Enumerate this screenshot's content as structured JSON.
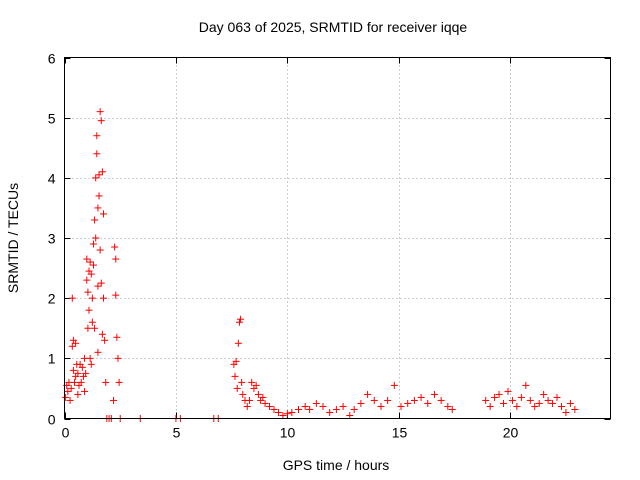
{
  "chart_data": {
    "type": "scatter",
    "title": "Day 063 of 2025, SRMTID for receiver iqqe",
    "xlabel": "GPS time / hours",
    "ylabel": "SRMTID / TECUs",
    "xlim": [
      0,
      24.5
    ],
    "ylim": [
      0,
      6
    ],
    "xticks": [
      0,
      5,
      10,
      15,
      20
    ],
    "yticks": [
      0,
      1,
      2,
      3,
      4,
      5,
      6
    ],
    "xtick_labels": [
      "0",
      "5",
      "10",
      "15",
      "20"
    ],
    "ytick_labels": [
      "0",
      "1",
      "2",
      "3",
      "4",
      "5",
      "6"
    ],
    "grid": true,
    "marker": "+",
    "color": "#ff0000",
    "series": [
      {
        "name": "SRMTID",
        "points": [
          [
            0.05,
            0.35
          ],
          [
            0.1,
            0.55
          ],
          [
            0.15,
            0.45
          ],
          [
            0.2,
            0.6
          ],
          [
            0.25,
            0.3
          ],
          [
            0.3,
            0.5
          ],
          [
            0.35,
            2.0
          ],
          [
            0.35,
            1.2
          ],
          [
            0.4,
            1.3
          ],
          [
            0.4,
            0.8
          ],
          [
            0.45,
            0.6
          ],
          [
            0.5,
            1.25
          ],
          [
            0.5,
            0.7
          ],
          [
            0.55,
            0.9
          ],
          [
            0.6,
            0.4
          ],
          [
            0.6,
            0.75
          ],
          [
            0.65,
            0.55
          ],
          [
            0.7,
            0.9
          ],
          [
            0.75,
            0.6
          ],
          [
            0.8,
            0.85
          ],
          [
            0.85,
            0.7
          ],
          [
            0.9,
            0.45
          ],
          [
            0.9,
            1.0
          ],
          [
            0.95,
            0.75
          ],
          [
            1.0,
            2.65
          ],
          [
            1.0,
            2.3
          ],
          [
            1.05,
            2.1
          ],
          [
            1.05,
            1.5
          ],
          [
            1.1,
            2.45
          ],
          [
            1.1,
            1.8
          ],
          [
            1.15,
            1.0
          ],
          [
            1.15,
            2.6
          ],
          [
            1.2,
            2.4
          ],
          [
            1.2,
            0.9
          ],
          [
            1.25,
            1.6
          ],
          [
            1.25,
            2.0
          ],
          [
            1.3,
            2.55
          ],
          [
            1.3,
            2.9
          ],
          [
            1.35,
            3.3
          ],
          [
            1.35,
            1.5
          ],
          [
            1.4,
            4.0
          ],
          [
            1.4,
            3.0
          ],
          [
            1.45,
            4.7
          ],
          [
            1.45,
            4.4
          ],
          [
            1.5,
            3.5
          ],
          [
            1.5,
            2.2
          ],
          [
            1.5,
            1.1
          ],
          [
            1.55,
            4.05
          ],
          [
            1.55,
            3.7
          ],
          [
            1.6,
            5.1
          ],
          [
            1.6,
            2.8
          ],
          [
            1.65,
            4.95
          ],
          [
            1.65,
            2.25
          ],
          [
            1.7,
            4.1
          ],
          [
            1.7,
            1.4
          ],
          [
            1.75,
            3.4
          ],
          [
            1.75,
            2.0
          ],
          [
            1.8,
            1.3
          ],
          [
            1.85,
            0.6
          ],
          [
            1.9,
            0.0
          ],
          [
            2.0,
            0.0
          ],
          [
            2.1,
            0.0
          ],
          [
            2.2,
            0.3
          ],
          [
            2.25,
            2.85
          ],
          [
            2.3,
            2.65
          ],
          [
            2.3,
            2.05
          ],
          [
            2.35,
            1.35
          ],
          [
            2.4,
            1.0
          ],
          [
            2.45,
            0.6
          ],
          [
            2.5,
            0.0
          ],
          [
            3.4,
            0.0
          ],
          [
            5.0,
            0.0
          ],
          [
            5.2,
            0.0
          ],
          [
            6.7,
            0.0
          ],
          [
            6.9,
            0.0
          ],
          [
            7.6,
            0.9
          ],
          [
            7.65,
            0.7
          ],
          [
            7.7,
            0.95
          ],
          [
            7.75,
            0.5
          ],
          [
            7.8,
            1.25
          ],
          [
            7.85,
            1.6
          ],
          [
            7.9,
            1.65
          ],
          [
            7.95,
            0.6
          ],
          [
            8.0,
            0.4
          ],
          [
            8.1,
            0.3
          ],
          [
            8.2,
            0.2
          ],
          [
            8.3,
            0.3
          ],
          [
            8.4,
            0.6
          ],
          [
            8.5,
            0.5
          ],
          [
            8.6,
            0.55
          ],
          [
            8.7,
            0.4
          ],
          [
            8.8,
            0.3
          ],
          [
            8.9,
            0.35
          ],
          [
            9.0,
            0.25
          ],
          [
            9.2,
            0.2
          ],
          [
            9.4,
            0.15
          ],
          [
            9.6,
            0.1
          ],
          [
            9.8,
            0.05
          ],
          [
            10.0,
            0.08
          ],
          [
            10.2,
            0.1
          ],
          [
            10.5,
            0.15
          ],
          [
            10.8,
            0.2
          ],
          [
            11.0,
            0.15
          ],
          [
            11.3,
            0.25
          ],
          [
            11.6,
            0.2
          ],
          [
            11.9,
            0.1
          ],
          [
            12.2,
            0.15
          ],
          [
            12.5,
            0.2
          ],
          [
            12.8,
            0.05
          ],
          [
            13.0,
            0.15
          ],
          [
            13.3,
            0.25
          ],
          [
            13.6,
            0.4
          ],
          [
            13.9,
            0.3
          ],
          [
            14.2,
            0.2
          ],
          [
            14.5,
            0.3
          ],
          [
            14.8,
            0.55
          ],
          [
            15.1,
            0.2
          ],
          [
            15.4,
            0.25
          ],
          [
            15.7,
            0.3
          ],
          [
            16.0,
            0.35
          ],
          [
            16.3,
            0.25
          ],
          [
            16.6,
            0.4
          ],
          [
            16.9,
            0.3
          ],
          [
            17.2,
            0.2
          ],
          [
            17.4,
            0.15
          ],
          [
            18.9,
            0.3
          ],
          [
            19.1,
            0.2
          ],
          [
            19.3,
            0.35
          ],
          [
            19.5,
            0.4
          ],
          [
            19.7,
            0.25
          ],
          [
            19.9,
            0.45
          ],
          [
            20.1,
            0.3
          ],
          [
            20.3,
            0.2
          ],
          [
            20.5,
            0.35
          ],
          [
            20.7,
            0.55
          ],
          [
            20.9,
            0.3
          ],
          [
            21.1,
            0.2
          ],
          [
            21.3,
            0.25
          ],
          [
            21.5,
            0.4
          ],
          [
            21.7,
            0.3
          ],
          [
            21.9,
            0.25
          ],
          [
            22.1,
            0.35
          ],
          [
            22.3,
            0.2
          ],
          [
            22.5,
            0.1
          ],
          [
            22.7,
            0.25
          ],
          [
            22.9,
            0.15
          ]
        ]
      }
    ]
  }
}
